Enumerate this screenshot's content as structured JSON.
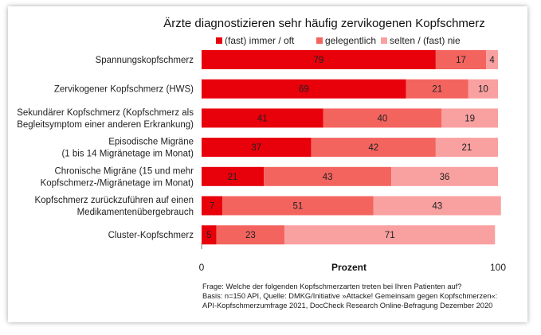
{
  "chart_data": {
    "type": "bar",
    "orientation": "horizontal",
    "stacked": true,
    "title": "Ärzte diagnostizieren sehr häufig zervikogenen Kopfschmerz",
    "xlabel": "Prozent",
    "xlim": [
      0,
      100
    ],
    "x_ticks": [
      "0",
      "100"
    ],
    "grid": false,
    "legend_position": "top",
    "categories": [
      [
        "Spannungskopfschmerz"
      ],
      [
        "Zervikogener Kopfschmerz (HWS)"
      ],
      [
        "Sekundärer Kopfschmerz (Kopfschmerz als",
        "Begleitsymptom einer anderen Erkrankung)"
      ],
      [
        "Episodische Migräne",
        "(1 bis 14 Migränetage im Monat)"
      ],
      [
        "Chronische Migräne (15 und mehr",
        "Kopfschmerz-/Migränetage im Monat)"
      ],
      [
        "Kopfschmerz zurückzuführen auf einen",
        "Medikamentenübergebrauch"
      ],
      [
        "Cluster-Kopfschmerz"
      ]
    ],
    "series": [
      {
        "name": "(fast) immer / oft",
        "color": "#e8000b",
        "values": [
          79,
          69,
          41,
          37,
          21,
          7,
          5
        ]
      },
      {
        "name": "gelegentlich",
        "color": "#f4645f",
        "values": [
          17,
          21,
          40,
          42,
          43,
          51,
          23
        ]
      },
      {
        "name": "selten / (fast) nie",
        "color": "#f9a0a0",
        "values": [
          4,
          10,
          19,
          21,
          36,
          43,
          71
        ]
      }
    ]
  },
  "notes": [
    "Frage: Welche der folgenden Kopfschmerzarten treten bei Ihren Patienten auf?",
    "Basis: n=150 API, Quelle: DMKG/Initiative »Attacke! Gemeinsam gegen Kopfschmerzen«:",
    "API-Kopfschmerzumfrage 2021, DocCheck Research Online-Befragung Dezember 2020"
  ]
}
